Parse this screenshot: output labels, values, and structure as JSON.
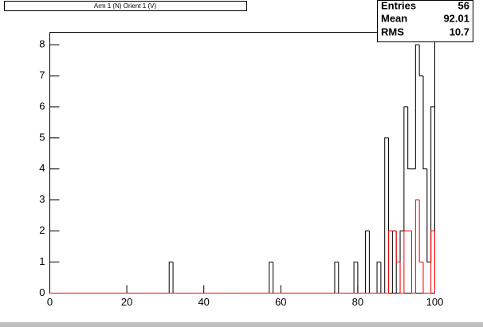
{
  "title": "Arm 1 (N) Orient 1 (V)",
  "stats": [
    {
      "label": "Entries",
      "value": 56
    },
    {
      "label": "Mean",
      "value": 92.01
    },
    {
      "label": "RMS",
      "value": 10.7
    }
  ],
  "chart_data": {
    "type": "histogram",
    "bins": [
      0,
      1,
      2,
      3,
      4,
      5,
      6,
      7,
      8,
      9,
      10,
      11,
      12,
      13,
      14,
      15,
      16,
      17,
      18,
      19,
      20,
      21,
      22,
      23,
      24,
      25,
      26,
      27,
      28,
      29,
      30,
      31,
      32,
      33,
      34,
      35,
      36,
      37,
      38,
      39,
      40,
      41,
      42,
      43,
      44,
      45,
      46,
      47,
      48,
      49,
      50,
      51,
      52,
      53,
      54,
      55,
      56,
      57,
      58,
      59,
      60,
      61,
      62,
      63,
      64,
      65,
      66,
      67,
      68,
      69,
      70,
      71,
      72,
      73,
      74,
      75,
      76,
      77,
      78,
      79,
      80,
      81,
      82,
      83,
      84,
      85,
      86,
      87,
      88,
      89,
      90,
      91,
      92,
      93,
      94,
      95,
      96,
      97,
      98,
      99,
      100
    ],
    "series": [
      {
        "color": "#000000",
        "values": [
          0,
          0,
          0,
          0,
          0,
          0,
          0,
          0,
          0,
          0,
          0,
          0,
          0,
          0,
          0,
          0,
          0,
          0,
          0,
          0,
          0,
          0,
          0,
          0,
          0,
          0,
          0,
          0,
          0,
          0,
          0,
          1,
          0,
          0,
          0,
          0,
          0,
          0,
          0,
          0,
          0,
          0,
          0,
          0,
          0,
          0,
          0,
          0,
          0,
          0,
          0,
          0,
          0,
          0,
          0,
          0,
          0,
          1,
          0,
          0,
          0,
          0,
          0,
          0,
          0,
          0,
          0,
          0,
          0,
          0,
          0,
          0,
          0,
          0,
          1,
          0,
          0,
          0,
          0,
          1,
          0,
          0,
          2,
          0,
          0,
          1,
          0,
          5,
          0,
          2,
          0,
          2,
          6,
          4,
          4,
          8,
          7,
          4,
          1,
          6
        ]
      },
      {
        "color": "#ff0000",
        "values": [
          0,
          0,
          0,
          0,
          0,
          0,
          0,
          0,
          0,
          0,
          0,
          0,
          0,
          0,
          0,
          0,
          0,
          0,
          0,
          0,
          0,
          0,
          0,
          0,
          0,
          0,
          0,
          0,
          0,
          0,
          0,
          0,
          0,
          0,
          0,
          0,
          0,
          0,
          0,
          0,
          0,
          0,
          0,
          0,
          0,
          0,
          0,
          0,
          0,
          0,
          0,
          0,
          0,
          0,
          0,
          0,
          0,
          0,
          0,
          0,
          0,
          0,
          0,
          0,
          0,
          0,
          0,
          0,
          0,
          0,
          0,
          0,
          0,
          0,
          0,
          0,
          0,
          0,
          0,
          0,
          0,
          0,
          0,
          0,
          0,
          0,
          0,
          0,
          2,
          2,
          1,
          0,
          2,
          2,
          0,
          3,
          1,
          0,
          0,
          2
        ]
      }
    ],
    "xlim": [
      0,
      100
    ],
    "xticks": [
      0,
      20,
      40,
      60,
      80,
      100
    ],
    "ylim": [
      0,
      8.4
    ],
    "yticks": [
      0,
      1,
      2,
      3,
      4,
      5,
      6,
      7,
      8
    ]
  }
}
